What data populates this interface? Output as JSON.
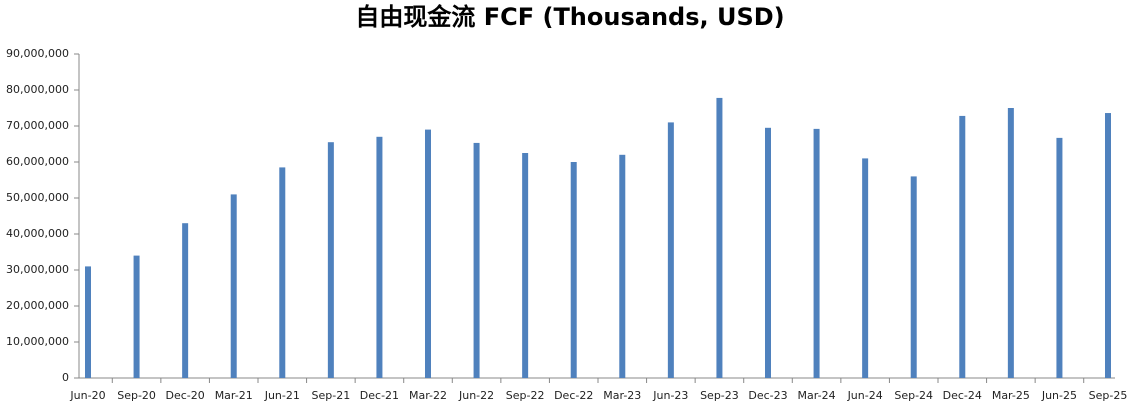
{
  "chart_data": {
    "type": "bar",
    "title": "自由现金流 FCF (Thousands, USD)",
    "categories": [
      "Jun-20",
      "Sep-20",
      "Dec-20",
      "Mar-21",
      "Jun-21",
      "Sep-21",
      "Dec-21",
      "Mar-22",
      "Jun-22",
      "Sep-22",
      "Dec-22",
      "Mar-23",
      "Jun-23",
      "Sep-23",
      "Dec-23",
      "Mar-24",
      "Jun-24",
      "Sep-24",
      "Dec-24",
      "Mar-25",
      "Jun-25",
      "Sep-25"
    ],
    "values": [
      31000000,
      34000000,
      43000000,
      51000000,
      58500000,
      65500000,
      67000000,
      69000000,
      65300000,
      62500000,
      60000000,
      62000000,
      71000000,
      77800000,
      69500000,
      69200000,
      61000000,
      56000000,
      72800000,
      75000000,
      66700000,
      73600000
    ],
    "color": "#4f81bd",
    "ylim": [
      0,
      90000000
    ],
    "yticks": [
      {
        "value": 0,
        "label": "0"
      },
      {
        "value": 10000000,
        "label": "10,000,000"
      },
      {
        "value": 20000000,
        "label": "20,000,000"
      },
      {
        "value": 30000000,
        "label": "30,000,000"
      },
      {
        "value": 40000000,
        "label": "40,000,000"
      },
      {
        "value": 50000000,
        "label": "50,000,000"
      },
      {
        "value": 60000000,
        "label": "60,000,000"
      },
      {
        "value": 70000000,
        "label": "70,000,000"
      },
      {
        "value": 80000000,
        "label": "80,000,000"
      },
      {
        "value": 90000000,
        "label": "90,000,000"
      }
    ],
    "grid": false
  }
}
